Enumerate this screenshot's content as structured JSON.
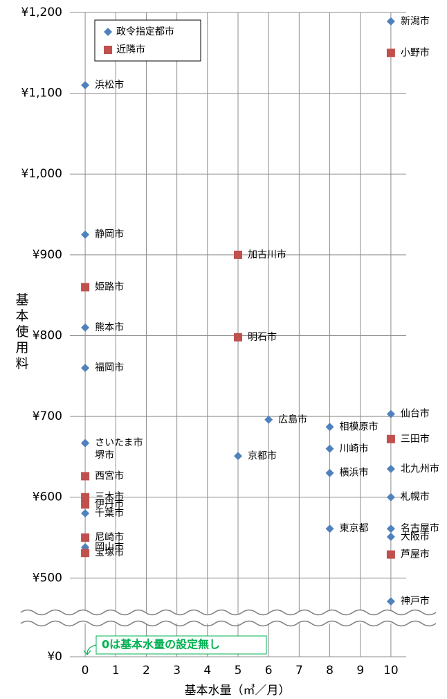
{
  "chart_data": {
    "type": "scatter",
    "y_label": "基本使用料",
    "x_label": "基本水量（㎥／月）",
    "annotation": "0は基本水量の設定無し",
    "xlim": [
      -0.5,
      10.5
    ],
    "xticks": [
      0,
      1,
      2,
      3,
      4,
      5,
      6,
      7,
      8,
      9,
      10
    ],
    "ylim": [
      460,
      1200
    ],
    "yticks": [
      {
        "value": 0,
        "label": "¥0"
      },
      {
        "value": 500,
        "label": "¥500"
      },
      {
        "value": 600,
        "label": "¥600"
      },
      {
        "value": 700,
        "label": "¥700"
      },
      {
        "value": 800,
        "label": "¥800"
      },
      {
        "value": 900,
        "label": "¥900"
      },
      {
        "value": 1000,
        "label": "¥1,000"
      },
      {
        "value": 1100,
        "label": "¥1,100"
      },
      {
        "value": 1200,
        "label": "¥1,200"
      }
    ],
    "grid": true,
    "axis_break": true,
    "legend": "upper left",
    "series": [
      {
        "name": "政令指定都市",
        "color": "#4f81bd",
        "marker": "diamond",
        "labels": [
          "新潟市",
          "浜松市",
          "静岡市",
          "熊本市",
          "福岡市",
          "さいたま市",
          "堺市",
          "千葉市",
          "岡山市",
          "京都市",
          "広島市",
          "相模原市",
          "川崎市",
          "横浜市",
          "東京都",
          "仙台市",
          "北九州市",
          "札幌市",
          "名古屋市",
          "大阪市",
          "神戸市"
        ],
        "x": [
          10,
          0,
          0,
          0,
          0,
          0,
          0,
          0,
          0,
          5,
          6,
          8,
          8,
          8,
          8,
          10,
          10,
          10,
          10,
          10,
          10
        ],
        "values": [
          1189,
          1110,
          925,
          810,
          760,
          667,
          667,
          580,
          538,
          651,
          696,
          687,
          660,
          630,
          561,
          703,
          635,
          600,
          561,
          551,
          471
        ]
      },
      {
        "name": "近隣市",
        "color": "#c0504d",
        "marker": "square",
        "labels": [
          "小野市",
          "加古川市",
          "姫路市",
          "明石市",
          "三田市",
          "西宮市",
          "三木市",
          "伊丹市",
          "尼崎市",
          "宝塚市",
          "芦屋市"
        ],
        "x": [
          10,
          5,
          0,
          5,
          10,
          0,
          0,
          0,
          0,
          0,
          10
        ],
        "values": [
          1150,
          900,
          860,
          798,
          672,
          626,
          600,
          591,
          550,
          531,
          529
        ]
      }
    ]
  }
}
